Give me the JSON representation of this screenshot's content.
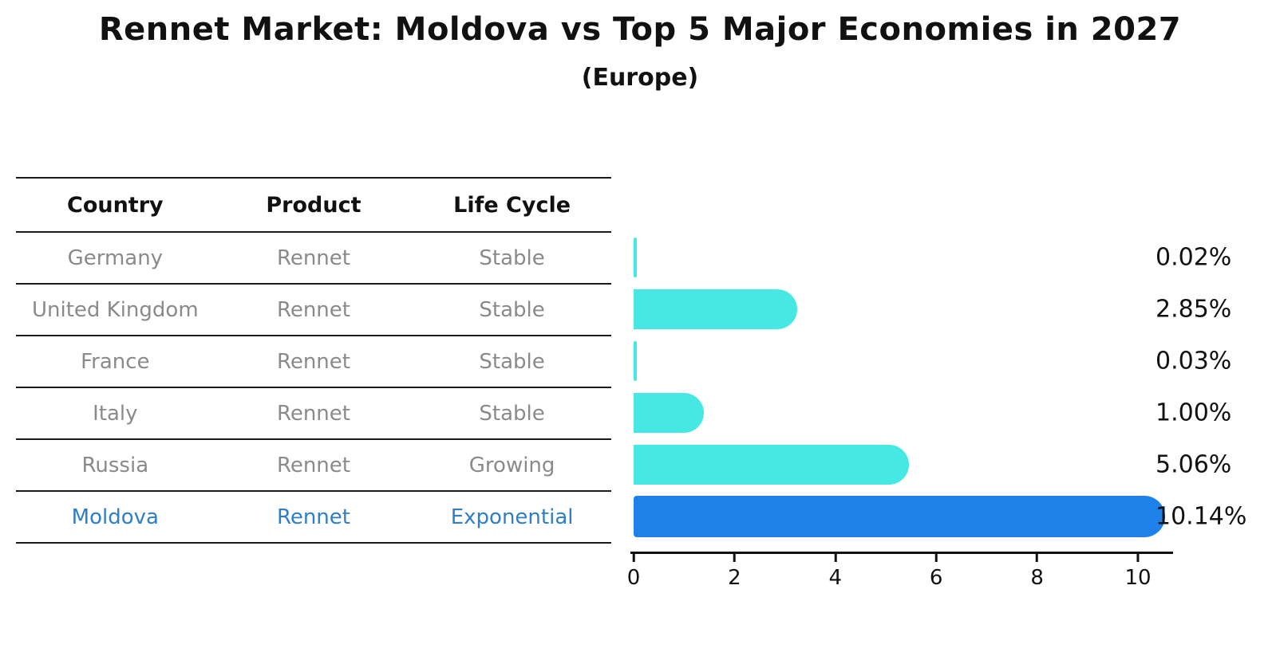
{
  "title": "Rennet Market: Moldova vs Top 5 Major Economies in 2027",
  "subtitle": "(Europe)",
  "table": {
    "headers": [
      "Country",
      "Product",
      "Life Cycle"
    ],
    "rows": [
      {
        "country": "Germany",
        "product": "Rennet",
        "life_cycle": "Stable",
        "highlight": false
      },
      {
        "country": "United Kingdom",
        "product": "Rennet",
        "life_cycle": "Stable",
        "highlight": false
      },
      {
        "country": "France",
        "product": "Rennet",
        "life_cycle": "Stable",
        "highlight": false
      },
      {
        "country": "Italy",
        "product": "Rennet",
        "life_cycle": "Stable",
        "highlight": false
      },
      {
        "country": "Russia",
        "product": "Rennet",
        "life_cycle": "Growing",
        "highlight": false
      },
      {
        "country": "Moldova",
        "product": "Rennet",
        "life_cycle": "Exponential",
        "highlight": true
      }
    ]
  },
  "chart_data": {
    "type": "bar",
    "orientation": "horizontal",
    "title": "Rennet Market: Moldova vs Top 5 Major Economies in 2027",
    "subtitle": "(Europe)",
    "categories": [
      "Germany",
      "United Kingdom",
      "France",
      "Italy",
      "Russia",
      "Moldova"
    ],
    "values": [
      0.02,
      2.85,
      0.03,
      1.0,
      5.06,
      10.14
    ],
    "value_labels": [
      "0.02%",
      "2.85%",
      "0.03%",
      "1.00%",
      "5.06%",
      "10.14%"
    ],
    "xlabel": "",
    "ylabel": "",
    "xlim": [
      0,
      10.7
    ],
    "xticks": [
      0,
      2,
      4,
      6,
      8,
      10
    ],
    "grid": false,
    "legend": false,
    "highlight_index": 5
  },
  "colors": {
    "bar_default": "#45e8e2",
    "bar_highlight": "#1e80e8",
    "highlight_text": "#2e7ec8",
    "table_text": "#8a8a8a",
    "header_text": "#111111",
    "value_text": "#111111",
    "line": "#1a1a1a"
  }
}
